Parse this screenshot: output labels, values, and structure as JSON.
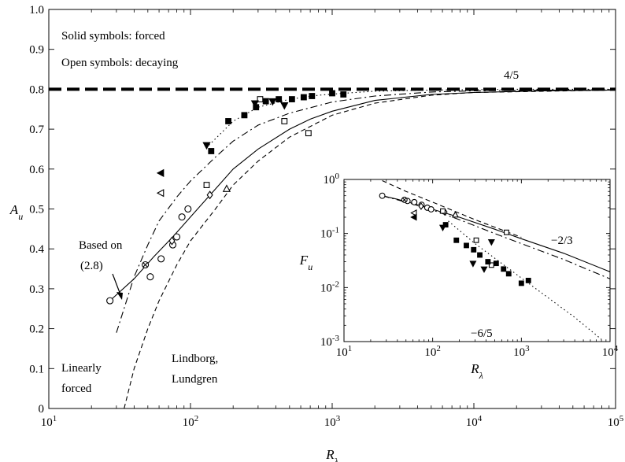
{
  "chart_data": [
    {
      "type": "line",
      "xscale": "log",
      "xlim": [
        10,
        100000
      ],
      "ylim": [
        0,
        1.0
      ],
      "xticks": [
        10,
        100,
        1000,
        10000,
        100000
      ],
      "xtick_labels": [
        {
          "base": "10",
          "exp": "1"
        },
        {
          "base": "10",
          "exp": "2"
        },
        {
          "base": "10",
          "exp": "3"
        },
        {
          "base": "10",
          "exp": "4"
        },
        {
          "base": "10",
          "exp": "5"
        }
      ],
      "yticks": [
        0,
        0.1,
        0.2,
        0.3,
        0.4,
        0.5,
        0.6,
        0.7,
        0.8,
        0.9,
        1.0
      ],
      "ytick_labels": [
        "0",
        "0.1",
        "0.2",
        "0.3",
        "0.4",
        "0.5",
        "0.6",
        "0.7",
        "0.8",
        "0.9",
        "1.0"
      ],
      "xlabel": {
        "base": "R",
        "sub": "λ"
      },
      "ylabel": {
        "base": "A",
        "sub": "u"
      },
      "annotations": {
        "solid": "Solid symbols: forced",
        "open": "Open symbols: decaying",
        "asymptote": "4/5",
        "based_on_1": "Based on",
        "based_on_2": "(2.8)",
        "linear_1": "Linearly",
        "linear_2": "forced",
        "lindborg_1": "Lindborg,",
        "lindborg_2": "Lundgren"
      },
      "series": [
        {
          "style": "dash-thick",
          "x": [
            10,
            100000
          ],
          "y": [
            0.8,
            0.8
          ]
        },
        {
          "style": "solid",
          "x": [
            27,
            40,
            55,
            75,
            100,
            150,
            200,
            300,
            500,
            700,
            1000,
            2000,
            5000,
            10000,
            30000,
            100000
          ],
          "y": [
            0.27,
            0.325,
            0.38,
            0.43,
            0.48,
            0.55,
            0.6,
            0.65,
            0.7,
            0.725,
            0.745,
            0.772,
            0.787,
            0.792,
            0.796,
            0.798
          ]
        },
        {
          "style": "dashdot",
          "x": [
            30,
            40,
            50,
            60,
            80,
            100,
            150,
            200,
            300,
            500,
            1000,
            2000,
            5000,
            10000,
            100000
          ],
          "y": [
            0.19,
            0.33,
            0.41,
            0.47,
            0.53,
            0.57,
            0.63,
            0.67,
            0.71,
            0.74,
            0.768,
            0.783,
            0.793,
            0.796,
            0.799
          ]
        },
        {
          "style": "dashed",
          "x": [
            34,
            40,
            50,
            60,
            80,
            100,
            150,
            200,
            300,
            500,
            1000,
            2000,
            5000,
            10000,
            100000
          ],
          "y": [
            0.0,
            0.1,
            0.2,
            0.27,
            0.36,
            0.42,
            0.5,
            0.56,
            0.62,
            0.68,
            0.735,
            0.765,
            0.785,
            0.792,
            0.798
          ]
        },
        {
          "style": "dotted",
          "x": [
            135,
            200,
            300,
            500,
            800,
            1200,
            2000,
            5000,
            20000,
            100000
          ],
          "y": [
            0.66,
            0.72,
            0.755,
            0.775,
            0.785,
            0.79,
            0.795,
            0.798,
            0.8,
            0.8
          ]
        }
      ],
      "points": [
        {
          "m": "circle-open",
          "x": 27,
          "y": 0.27
        },
        {
          "m": "circle-open",
          "x": 52,
          "y": 0.33
        },
        {
          "m": "circle-open",
          "x": 62,
          "y": 0.375
        },
        {
          "m": "circle-open",
          "x": 75,
          "y": 0.41
        },
        {
          "m": "circle-open",
          "x": 80,
          "y": 0.43
        },
        {
          "m": "circle-open",
          "x": 87,
          "y": 0.48
        },
        {
          "m": "circle-open",
          "x": 96,
          "y": 0.5
        },
        {
          "m": "circle-cross",
          "x": 48,
          "y": 0.36
        },
        {
          "m": "diamond-open",
          "x": 74,
          "y": 0.42
        },
        {
          "m": "diamond-open",
          "x": 137,
          "y": 0.535
        },
        {
          "m": "tri-up-open",
          "x": 180,
          "y": 0.55
        },
        {
          "m": "tri-left-open",
          "x": 62,
          "y": 0.54
        },
        {
          "m": "tri-left-solid",
          "x": 62,
          "y": 0.59
        },
        {
          "m": "square-open",
          "x": 130,
          "y": 0.56
        },
        {
          "m": "square-open",
          "x": 310,
          "y": 0.775
        },
        {
          "m": "square-open",
          "x": 460,
          "y": 0.72
        },
        {
          "m": "square-open",
          "x": 680,
          "y": 0.69
        },
        {
          "m": "tri-down-solid",
          "x": 130,
          "y": 0.66
        },
        {
          "m": "tri-down-solid",
          "x": 285,
          "y": 0.765
        },
        {
          "m": "tri-down-solid",
          "x": 380,
          "y": 0.77
        },
        {
          "m": "tri-down-solid",
          "x": 460,
          "y": 0.76
        },
        {
          "m": "square-solid",
          "x": 140,
          "y": 0.645
        },
        {
          "m": "square-solid",
          "x": 185,
          "y": 0.72
        },
        {
          "m": "square-solid",
          "x": 240,
          "y": 0.735
        },
        {
          "m": "square-solid",
          "x": 290,
          "y": 0.755
        },
        {
          "m": "square-solid",
          "x": 340,
          "y": 0.77
        },
        {
          "m": "square-solid",
          "x": 420,
          "y": 0.775
        },
        {
          "m": "square-solid",
          "x": 520,
          "y": 0.775
        },
        {
          "m": "square-solid",
          "x": 630,
          "y": 0.78
        },
        {
          "m": "square-solid",
          "x": 720,
          "y": 0.783
        },
        {
          "m": "square-solid",
          "x": 1000,
          "y": 0.79
        },
        {
          "m": "square-solid",
          "x": 1200,
          "y": 0.787
        }
      ]
    },
    {
      "type": "line",
      "xscale": "log",
      "yscale": "log",
      "xlim": [
        10,
        10000
      ],
      "ylim": [
        0.001,
        1
      ],
      "xticks": [
        10,
        100,
        1000,
        10000
      ],
      "xtick_labels": [
        {
          "base": "10",
          "exp": "1"
        },
        {
          "base": "10",
          "exp": "2"
        },
        {
          "base": "10",
          "exp": "3"
        },
        {
          "base": "10",
          "exp": "4"
        }
      ],
      "yticks": [
        0.001,
        0.01,
        0.1,
        1
      ],
      "ytick_labels": [
        {
          "base": "10",
          "exp": "-3"
        },
        {
          "base": "10",
          "exp": "-2"
        },
        {
          "base": "10",
          "exp": "-1"
        },
        {
          "base": "10",
          "exp": "0"
        }
      ],
      "xlabel": {
        "base": "R",
        "sub": "λ"
      },
      "ylabel": {
        "base": "F",
        "sub": "u"
      },
      "annotations": {
        "slope1": "−2/3",
        "slope2": "−6/5"
      },
      "series": [
        {
          "style": "solid",
          "x": [
            27,
            40,
            60,
            100,
            200,
            500,
            1000,
            3000,
            10000
          ],
          "y": [
            0.5,
            0.43,
            0.36,
            0.28,
            0.2,
            0.12,
            0.08,
            0.043,
            0.0195
          ]
        },
        {
          "style": "dashdot",
          "x": [
            27,
            40,
            60,
            100,
            200,
            500,
            1000,
            3000,
            10000
          ],
          "y": [
            0.5,
            0.42,
            0.35,
            0.27,
            0.18,
            0.1,
            0.065,
            0.033,
            0.0145
          ]
        },
        {
          "style": "dashed",
          "x": [
            27,
            50,
            100,
            300,
            1000
          ],
          "y": [
            0.95,
            0.6,
            0.38,
            0.18,
            0.085
          ]
        },
        {
          "style": "dotted",
          "x": [
            150,
            300,
            500,
            1000,
            2000,
            4000,
            8000
          ],
          "y": [
            0.17,
            0.065,
            0.035,
            0.015,
            0.0065,
            0.0028,
            0.0011
          ]
        }
      ],
      "points": [
        {
          "m": "circle-open",
          "x": 27,
          "y": 0.5
        },
        {
          "m": "circle-open",
          "x": 52,
          "y": 0.4
        },
        {
          "m": "circle-open",
          "x": 62,
          "y": 0.38
        },
        {
          "m": "circle-open",
          "x": 75,
          "y": 0.34
        },
        {
          "m": "circle-open",
          "x": 87,
          "y": 0.3
        },
        {
          "m": "circle-open",
          "x": 96,
          "y": 0.28
        },
        {
          "m": "circle-cross",
          "x": 48,
          "y": 0.42
        },
        {
          "m": "diamond-open",
          "x": 74,
          "y": 0.32
        },
        {
          "m": "diamond-open",
          "x": 137,
          "y": 0.25
        },
        {
          "m": "tri-up-open",
          "x": 180,
          "y": 0.22
        },
        {
          "m": "tri-left-open",
          "x": 62,
          "y": 0.24
        },
        {
          "m": "tri-left-solid",
          "x": 62,
          "y": 0.2
        },
        {
          "m": "square-open",
          "x": 130,
          "y": 0.26
        },
        {
          "m": "square-open",
          "x": 310,
          "y": 0.075
        },
        {
          "m": "square-open",
          "x": 460,
          "y": 0.026
        },
        {
          "m": "square-open",
          "x": 680,
          "y": 0.105
        },
        {
          "m": "tri-down-solid",
          "x": 130,
          "y": 0.13
        },
        {
          "m": "tri-down-solid",
          "x": 285,
          "y": 0.028
        },
        {
          "m": "tri-down-solid",
          "x": 380,
          "y": 0.022
        },
        {
          "m": "tri-down-solid",
          "x": 460,
          "y": 0.07
        },
        {
          "m": "square-solid",
          "x": 140,
          "y": 0.145
        },
        {
          "m": "square-solid",
          "x": 185,
          "y": 0.075
        },
        {
          "m": "square-solid",
          "x": 240,
          "y": 0.06
        },
        {
          "m": "square-solid",
          "x": 290,
          "y": 0.05
        },
        {
          "m": "square-solid",
          "x": 340,
          "y": 0.04
        },
        {
          "m": "square-solid",
          "x": 420,
          "y": 0.03
        },
        {
          "m": "square-solid",
          "x": 520,
          "y": 0.028
        },
        {
          "m": "square-solid",
          "x": 630,
          "y": 0.022
        },
        {
          "m": "square-solid",
          "x": 720,
          "y": 0.018
        },
        {
          "m": "square-solid",
          "x": 1000,
          "y": 0.012
        },
        {
          "m": "square-solid",
          "x": 1200,
          "y": 0.0135
        }
      ]
    }
  ]
}
